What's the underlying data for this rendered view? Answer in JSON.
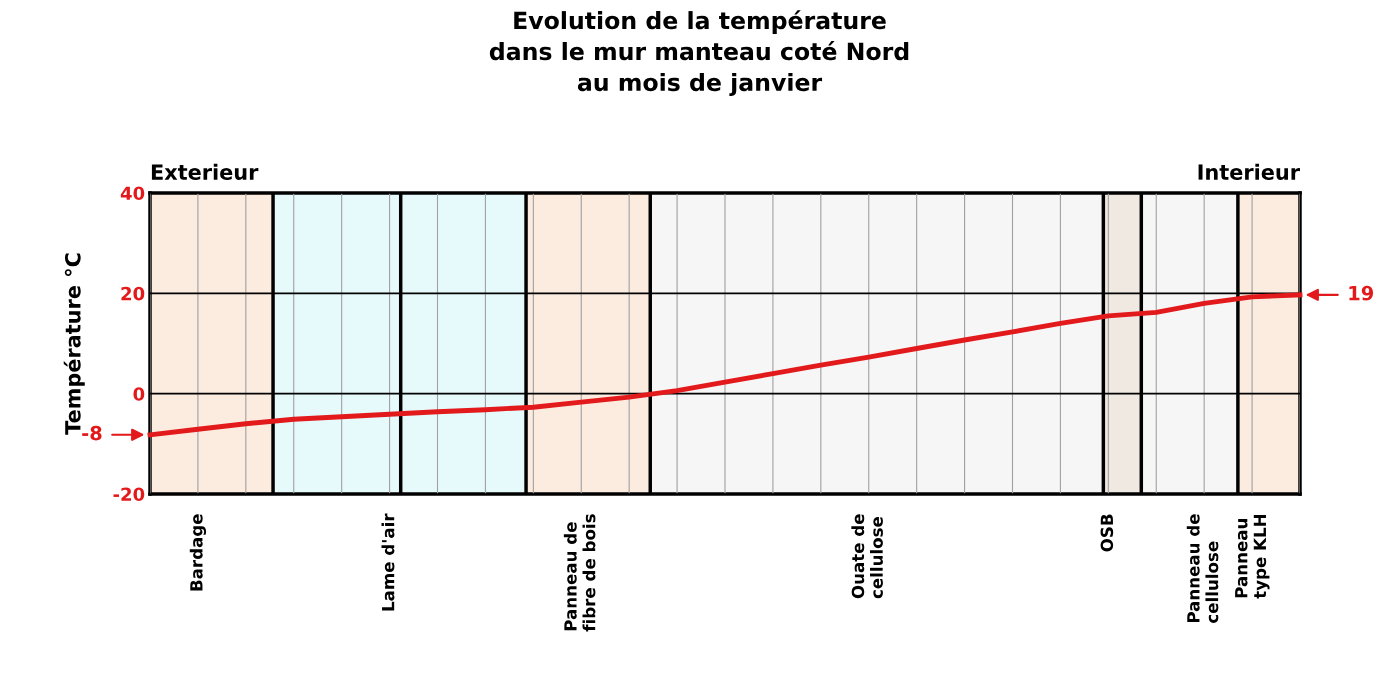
{
  "chart_data": {
    "type": "line",
    "title": "Evolution de la température\ndans le mur manteau coté Nord\nau mois de janvier",
    "ylabel": "Température °C",
    "categories": [
      null,
      "Bardage",
      null,
      null,
      null,
      "Lame d'air",
      null,
      null,
      null,
      "Panneau de\nfibre de bois",
      null,
      null,
      null,
      null,
      null,
      "Ouate de\ncellulose",
      null,
      null,
      null,
      null,
      "OSB",
      null,
      "Panneau de\ncellulose",
      "Panneau\ntype KLH",
      null
    ],
    "series": [
      {
        "color": "#e31a1c",
        "values": [
          -8.2,
          -7.1,
          -6.0,
          -5.1,
          -4.6,
          -4.1,
          -3.6,
          -3.2,
          -2.7,
          -1.7,
          -0.7,
          0.6,
          2.3,
          4.0,
          5.7,
          7.3,
          9.0,
          10.7,
          12.3,
          14.0,
          15.5,
          16.2,
          18.0,
          19.3,
          19.7
        ]
      }
    ],
    "ylim": [
      -20,
      40
    ],
    "yticks": [
      -20,
      0,
      20,
      40
    ],
    "grid": true,
    "marker": "none",
    "line_style": "solid",
    "annotations": [
      "-8",
      "19",
      "Exterieur",
      "Interieur"
    ]
  }
}
